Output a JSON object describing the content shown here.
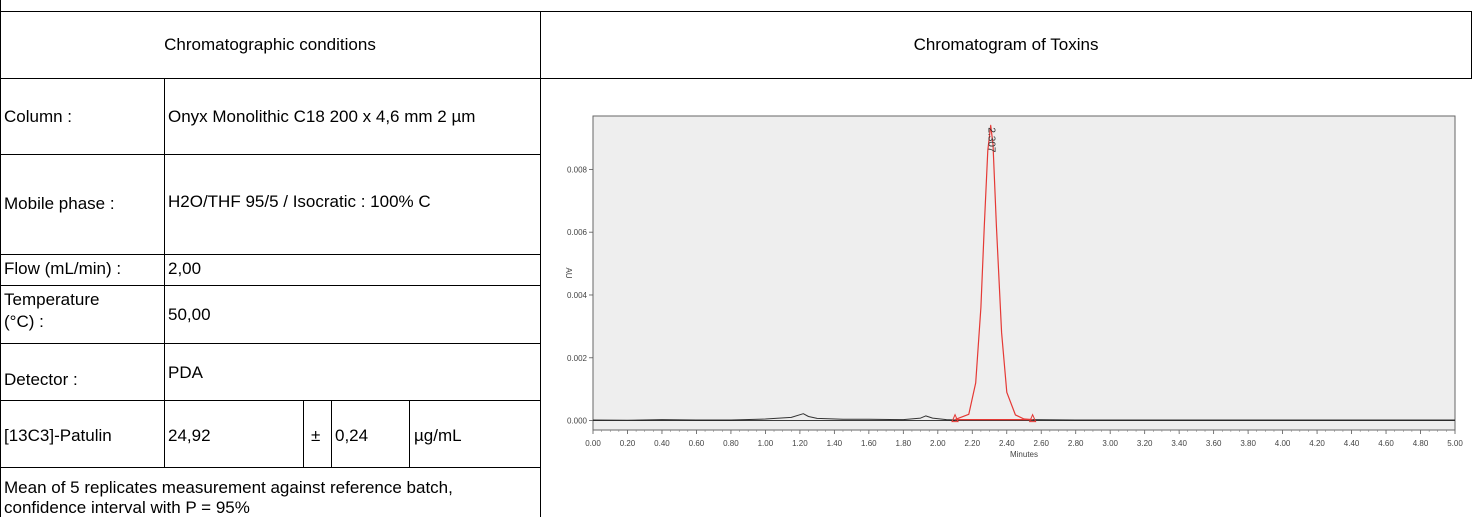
{
  "conditions": {
    "header": "Chromatographic conditions",
    "column_label": "Column :",
    "column_value": "Onyx Monolithic C18 200 x 4,6 mm 2 µm",
    "mobile_label": "Mobile phase :",
    "mobile_value": "H2O/THF 95/5 / Isocratic : 100% C",
    "flow_label": "Flow (mL/min) :",
    "flow_value": "2,00",
    "temp_label_1": "Temperature",
    "temp_label_2": "(°C) :",
    "temp_value": "50,00",
    "detector_label": "Detector :",
    "detector_value": "PDA",
    "analyte_label": "[13C3]-Patulin",
    "analyte_value": "24,92",
    "pm_sign": "±",
    "uncertainty": "0,24",
    "unit": "µg/mL",
    "note_line1": "Mean of 5 replicates measurement against reference batch,",
    "note_line2": "confidence interval with P = 95%"
  },
  "chromatogram": {
    "header": "Chromatogram of Toxins"
  },
  "chart_data": {
    "type": "line",
    "xlabel": "Minutes",
    "ylabel": "AU",
    "xlim": [
      0.0,
      5.0
    ],
    "ylim": [
      -0.0003,
      0.0097
    ],
    "x_ticks": [
      "0.00",
      "0.20",
      "0.40",
      "0.60",
      "0.80",
      "1.00",
      "1.20",
      "1.40",
      "1.60",
      "1.80",
      "2.00",
      "2.20",
      "2.40",
      "2.60",
      "2.80",
      "3.00",
      "3.20",
      "3.40",
      "3.60",
      "3.80",
      "4.00",
      "4.20",
      "4.40",
      "4.60",
      "4.80",
      "5.00"
    ],
    "y_ticks": [
      "0.000",
      "0.002",
      "0.004",
      "0.006",
      "0.008"
    ],
    "peak_label": "2.307",
    "colors": {
      "baseline": "#333333",
      "peak": "#e53935",
      "background": "#eeeeee"
    },
    "series": [
      {
        "values_x": [
          0.0,
          0.2,
          0.4,
          0.6,
          0.8,
          1.0,
          1.15,
          1.22,
          1.25,
          1.3,
          1.45,
          1.6,
          1.8,
          1.9,
          1.93,
          1.97,
          2.05,
          2.1
        ],
        "values_y": [
          2e-05,
          1e-05,
          3e-05,
          2e-05,
          2e-05,
          5e-05,
          0.0001,
          0.00022,
          0.00013,
          7e-05,
          4e-05,
          4e-05,
          3e-05,
          8e-05,
          0.00015,
          8e-05,
          3e-05,
          2e-05
        ]
      },
      {
        "values_x": [
          2.1,
          2.18,
          2.22,
          2.25,
          2.27,
          2.29,
          2.307,
          2.32,
          2.34,
          2.37,
          2.4,
          2.45,
          2.5,
          2.55
        ],
        "values_y": [
          3e-05,
          0.0002,
          0.0012,
          0.0036,
          0.0062,
          0.0086,
          0.0094,
          0.0088,
          0.0062,
          0.0028,
          0.0009,
          0.00018,
          5e-05,
          3e-05
        ]
      },
      {
        "values_x": [
          2.55,
          2.8,
          3.2,
          3.6,
          4.0,
          4.4,
          4.8,
          5.0
        ],
        "values_y": [
          3e-05,
          2e-05,
          2e-05,
          2e-05,
          2e-05,
          2e-05,
          2e-05,
          2e-05
        ]
      }
    ],
    "peak_baseline": {
      "x": [
        2.1,
        2.55
      ],
      "y": [
        3e-05,
        3e-05
      ]
    }
  }
}
